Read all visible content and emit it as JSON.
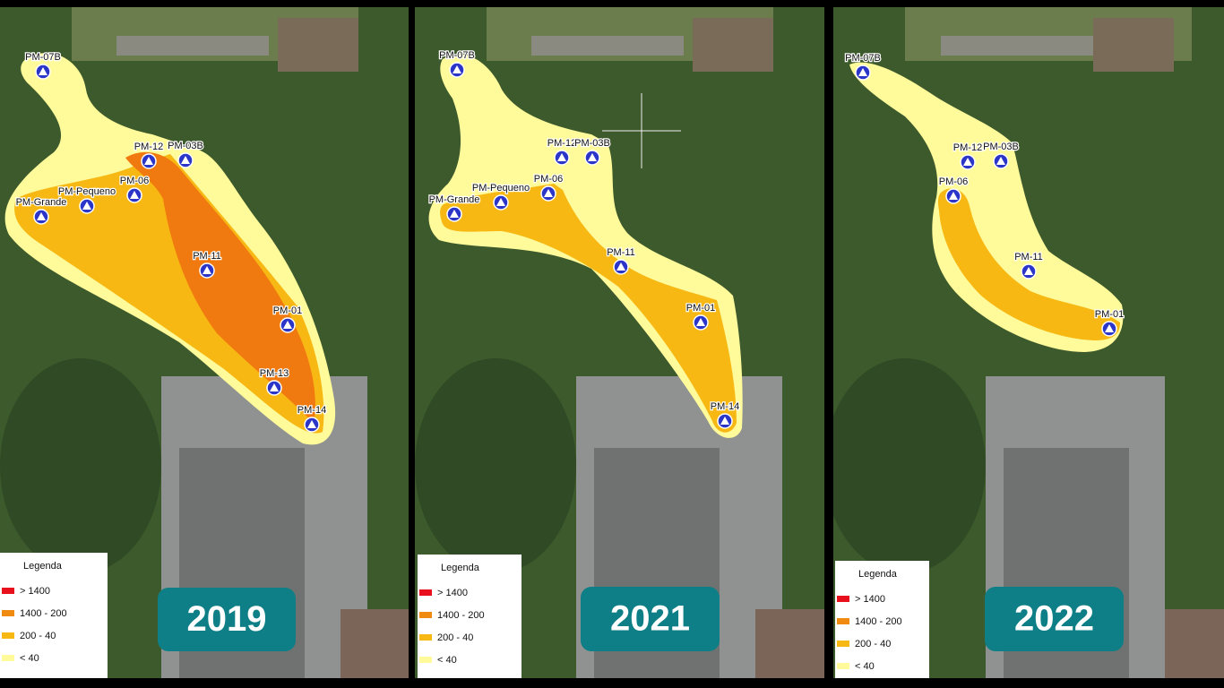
{
  "panels": [
    {
      "year": "2019",
      "wells": [
        "PM-07B",
        "PM-12",
        "PM-03B",
        "PM-06",
        "PM-Pequeno",
        "PM-Grande",
        "PM-11",
        "PM-01",
        "PM-13",
        "PM-14"
      ],
      "legend": {
        "title": "Legenda",
        "items": [
          {
            "label": "> 1400",
            "color": "#e8101c"
          },
          {
            "label": "1400 - 200",
            "color": "#f08a10"
          },
          {
            "label": "200 - 40",
            "color": "#f8b814"
          },
          {
            "label": "< 40",
            "color": "#fffa9a"
          }
        ]
      }
    },
    {
      "year": "2021",
      "wells": [
        "PM-07B",
        "PM-12",
        "PM-03B",
        "PM-06",
        "PM-Pequeno",
        "PM-Grande",
        "PM-11",
        "PM-01",
        "PM-14"
      ],
      "legend": {
        "title": "Legenda",
        "items": [
          {
            "label": "> 1400",
            "color": "#e8101c"
          },
          {
            "label": "1400 - 200",
            "color": "#f08a10"
          },
          {
            "label": "200 - 40",
            "color": "#f8b814"
          },
          {
            "label": "< 40",
            "color": "#fffa9a"
          }
        ]
      }
    },
    {
      "year": "2022",
      "wells": [
        "PM-07B",
        "PM-12",
        "PM-03B",
        "PM-06",
        "PM-11",
        "PM-01"
      ],
      "legend": {
        "title": "Legenda",
        "items": [
          {
            "label": "> 1400",
            "color": "#e8101c"
          },
          {
            "label": "1400 - 200",
            "color": "#f08a10"
          },
          {
            "label": "200 - 40",
            "color": "#f8b814"
          },
          {
            "label": "< 40",
            "color": "#fffa9a"
          }
        ]
      }
    }
  ]
}
